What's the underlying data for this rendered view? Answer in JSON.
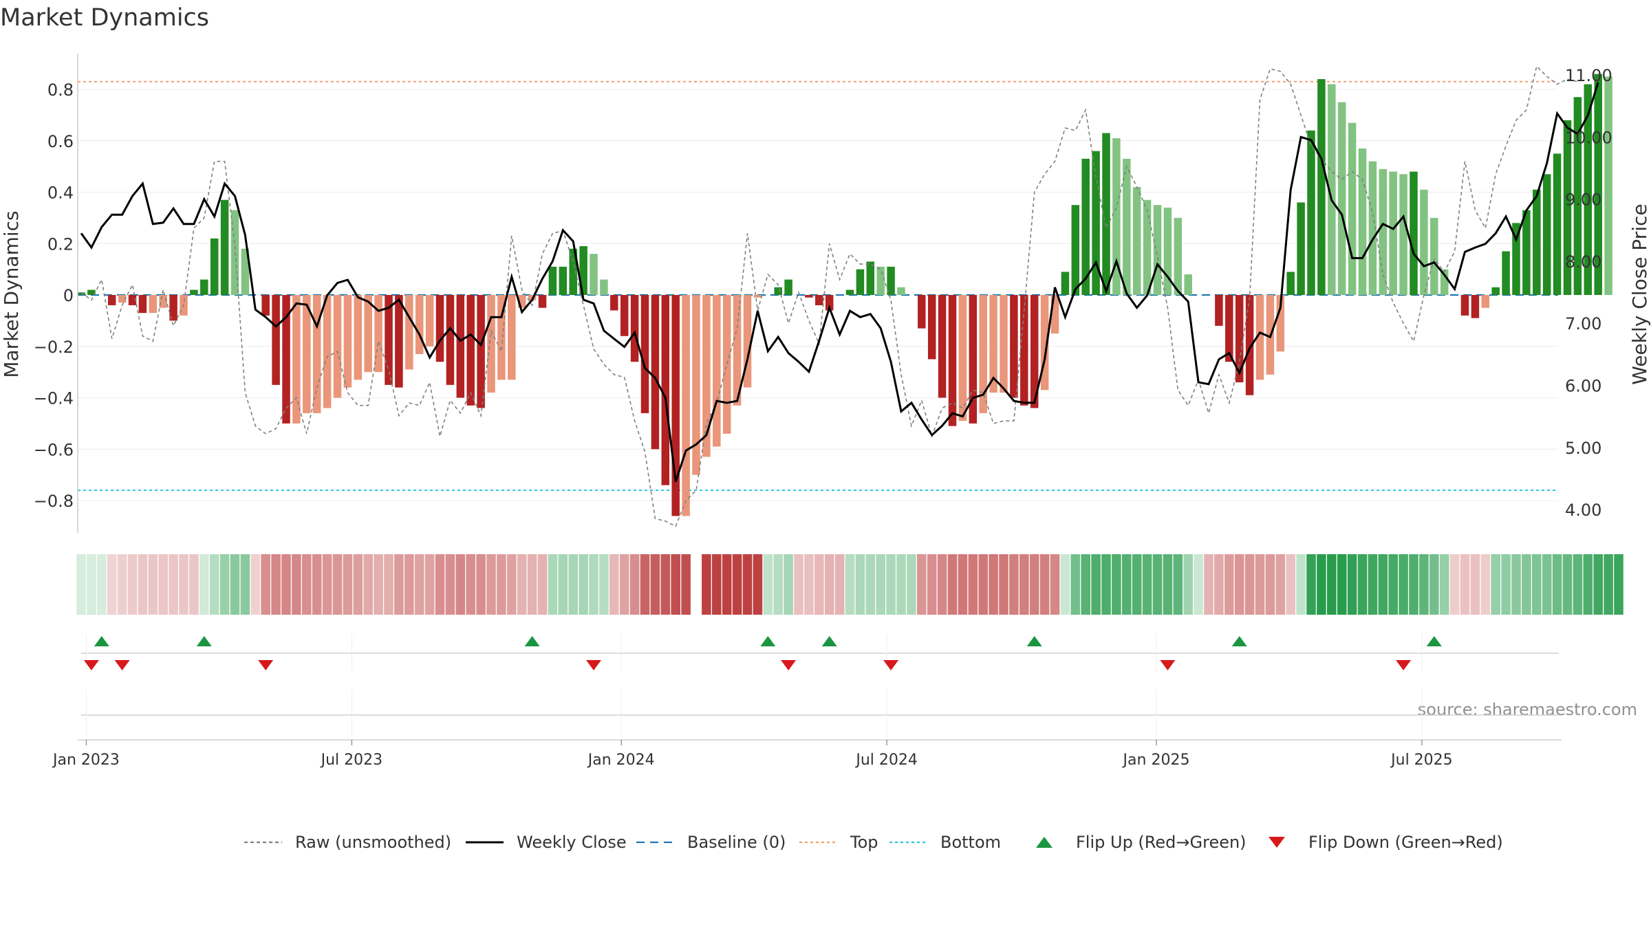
{
  "title": "Market Dynamics",
  "source_text": "source: sharemaestro.com",
  "colors": {
    "green_dark": "#228b22",
    "green_light": "#82c382",
    "red_dark": "#b22222",
    "red_light": "#e9967a",
    "top_line": "#f4a06a",
    "bottom_line": "#2ec4d8",
    "baseline": "#1f77b4",
    "raw_line": "#808080",
    "close_line": "#000000",
    "flip_up": "#1a9641",
    "flip_down": "#d7191c"
  },
  "chart_data": {
    "type": "bar",
    "title": "Market Dynamics",
    "ylabel": "Market Dynamics",
    "y2label": "Weekly Close Price",
    "ylim": [
      -0.92,
      0.93
    ],
    "y2lim": [
      3.7,
      11.5
    ],
    "yticks": [
      "0.8",
      "0.6",
      "0.4",
      "0.2",
      "0",
      "−0.2",
      "−0.4",
      "−0.6",
      "−0.8"
    ],
    "ytick_values": [
      0.8,
      0.6,
      0.4,
      0.2,
      0,
      -0.2,
      -0.4,
      -0.6,
      -0.8
    ],
    "y2ticks": [
      "11.00",
      "10.00",
      "9.00",
      "8.00",
      "7.00",
      "6.00",
      "5.00",
      "4.00"
    ],
    "y2tick_values": [
      11,
      10,
      9,
      8,
      7,
      6,
      5,
      4
    ],
    "xticks": [
      "Jan 2023",
      "Jul 2023",
      "Jan 2024",
      "Jul 2024",
      "Jan 2025",
      "Jul 2025"
    ],
    "xtick_weeks": [
      0.5,
      26.4,
      52.7,
      78.6,
      104.9,
      130.8
    ],
    "top_level": 0.83,
    "bottom_level": -0.76,
    "grid": true,
    "legend_position": "bottom-center",
    "bars": [
      0.01,
      0.02,
      0,
      -0.04,
      -0.03,
      -0.04,
      -0.07,
      -0.07,
      -0.05,
      -0.1,
      -0.08,
      0.02,
      0.06,
      0.22,
      0.37,
      0.33,
      0.18,
      0,
      -0.08,
      -0.35,
      -0.5,
      -0.5,
      -0.46,
      -0.46,
      -0.44,
      -0.4,
      -0.36,
      -0.33,
      -0.3,
      -0.3,
      -0.35,
      -0.36,
      -0.29,
      -0.23,
      -0.2,
      -0.26,
      -0.35,
      -0.4,
      -0.43,
      -0.44,
      -0.38,
      -0.33,
      -0.33,
      -0.05,
      -0.02,
      -0.05,
      0.11,
      0.11,
      0.18,
      0.19,
      0.16,
      0.06,
      -0.06,
      -0.16,
      -0.26,
      -0.46,
      -0.6,
      -0.74,
      -0.86,
      -0.86,
      -0.7,
      -0.63,
      -0.59,
      -0.54,
      -0.43,
      -0.36,
      -0.01,
      0,
      0.03,
      0.06,
      0,
      -0.01,
      -0.04,
      -0.06,
      0,
      0.02,
      0.1,
      0.13,
      0.11,
      0.11,
      0.03,
      0,
      -0.13,
      -0.25,
      -0.4,
      -0.51,
      -0.49,
      -0.5,
      -0.46,
      -0.38,
      -0.38,
      -0.4,
      -0.43,
      -0.44,
      -0.37,
      -0.15,
      0.09,
      0.35,
      0.53,
      0.56,
      0.63,
      0.61,
      0.53,
      0.42,
      0.37,
      0.35,
      0.34,
      0.3,
      0.08,
      0,
      0,
      -0.12,
      -0.26,
      -0.34,
      -0.39,
      -0.33,
      -0.31,
      -0.22,
      0.09,
      0.36,
      0.64,
      0.84,
      0.82,
      0.75,
      0.67,
      0.57,
      0.52,
      0.49,
      0.48,
      0.47,
      0.48,
      0.41,
      0.3,
      0.1,
      0,
      -0.08,
      -0.09,
      -0.05,
      0.03,
      0.17,
      0.28,
      0.33,
      0.41,
      0.47,
      0.55,
      0.68,
      0.77,
      0.82,
      0.86,
      0.85
    ],
    "series": [
      {
        "name": "Raw (unsmoothed)",
        "values": [
          0.01,
          -0.02,
          0.06,
          -0.17,
          -0.04,
          0.04,
          -0.16,
          -0.18,
          0.02,
          -0.12,
          -0.04,
          0.26,
          0.3,
          0.52,
          0.52,
          0.19,
          -0.38,
          -0.51,
          -0.54,
          -0.52,
          -0.44,
          -0.4,
          -0.54,
          -0.36,
          -0.24,
          -0.22,
          -0.38,
          -0.43,
          -0.43,
          -0.18,
          -0.29,
          -0.47,
          -0.42,
          -0.43,
          -0.34,
          -0.55,
          -0.41,
          -0.46,
          -0.38,
          -0.47,
          -0.14,
          -0.22,
          0.23,
          0.02,
          -0.04,
          0.16,
          0.24,
          0.25,
          0.13,
          -0.04,
          -0.21,
          -0.27,
          -0.31,
          -0.32,
          -0.49,
          -0.61,
          -0.87,
          -0.88,
          -0.9,
          -0.8,
          -0.76,
          -0.5,
          -0.42,
          -0.27,
          -0.13,
          0.24,
          -0.06,
          0.08,
          0.04,
          -0.11,
          0.01,
          -0.1,
          -0.19,
          0.2,
          0.06,
          0.16,
          0.12,
          0.12,
          0.1,
          -0.02,
          -0.31,
          -0.51,
          -0.41,
          -0.55,
          -0.44,
          -0.42,
          -0.44,
          -0.37,
          -0.38,
          -0.5,
          -0.49,
          -0.49,
          -0.06,
          0.4,
          0.47,
          0.52,
          0.65,
          0.64,
          0.72,
          0.46,
          0.26,
          0.34,
          0.5,
          0.42,
          0.33,
          0.15,
          -0.05,
          -0.37,
          -0.43,
          -0.33,
          -0.46,
          -0.31,
          -0.42,
          -0.26,
          -0.01,
          0.76,
          0.88,
          0.87,
          0.82,
          0.7,
          0.58,
          0.53,
          0.48,
          0.45,
          0.48,
          0.45,
          0.32,
          0.08,
          -0.03,
          -0.11,
          -0.18,
          0.0,
          0.14,
          0.09,
          0.17,
          0.52,
          0.33,
          0.26,
          0.47,
          0.58,
          0.68,
          0.72,
          0.89,
          0.85,
          0.82,
          0.84,
          0.83
        ]
      },
      {
        "name": "Weekly Close",
        "values": [
          8.45,
          8.22,
          8.55,
          8.75,
          8.75,
          9.05,
          9.25,
          8.6,
          8.62,
          8.85,
          8.6,
          8.6,
          9.0,
          8.72,
          9.25,
          9.05,
          8.42,
          7.22,
          7.1,
          6.95,
          7.1,
          7.32,
          7.3,
          6.95,
          7.45,
          7.65,
          7.7,
          7.42,
          7.35,
          7.2,
          7.25,
          7.38,
          7.1,
          6.82,
          6.45,
          6.72,
          6.92,
          6.72,
          6.82,
          6.65,
          7.1,
          7.1,
          7.75,
          7.18,
          7.38,
          7.72,
          8.0,
          8.5,
          8.32,
          7.38,
          7.32,
          6.88,
          6.75,
          6.62,
          6.85,
          6.28,
          6.12,
          5.8,
          4.45,
          4.95,
          5.05,
          5.2,
          5.75,
          5.72,
          5.75,
          6.42,
          7.2,
          6.55,
          6.78,
          6.52,
          6.38,
          6.22,
          6.72,
          7.25,
          6.82,
          7.2,
          7.1,
          7.15,
          6.92,
          6.38,
          5.58,
          5.72,
          5.45,
          5.2,
          5.35,
          5.55,
          5.5,
          5.8,
          5.85,
          6.12,
          5.95,
          5.75,
          5.72,
          5.72,
          6.42,
          7.58,
          7.1,
          7.55,
          7.72,
          7.98,
          7.52,
          8.0,
          7.48,
          7.25,
          7.45,
          7.95,
          7.75,
          7.52,
          7.35,
          6.05,
          6.02,
          6.42,
          6.52,
          6.2,
          6.6,
          6.85,
          6.78,
          7.25,
          9.15,
          10.0,
          9.95,
          9.65,
          8.98,
          8.75,
          8.05,
          8.05,
          8.35,
          8.6,
          8.52,
          8.72,
          8.12,
          7.92,
          7.98,
          7.78,
          7.55,
          8.15,
          8.22,
          8.28,
          8.45,
          8.72,
          8.35,
          8.82,
          9.05,
          9.58,
          10.38,
          10.15,
          10.05,
          10.35,
          10.88
        ]
      }
    ],
    "strip": [
      0,
      0,
      0,
      -0.02,
      -0.04,
      -0.06,
      -0.08,
      -0.08,
      -0.08,
      -0.08,
      -0.08,
      -0.08,
      0.02,
      0.15,
      0.28,
      0.35,
      0.35,
      -0.03,
      -0.35,
      -0.38,
      -0.38,
      -0.38,
      -0.35,
      -0.35,
      -0.32,
      -0.32,
      -0.3,
      -0.27,
      -0.22,
      -0.2,
      -0.2,
      -0.3,
      -0.3,
      -0.25,
      -0.25,
      -0.35,
      -0.35,
      -0.38,
      -0.35,
      -0.35,
      -0.3,
      -0.3,
      -0.25,
      -0.18,
      -0.18,
      -0.18,
      0.2,
      0.22,
      0.22,
      0.22,
      0.18,
      0.15,
      -0.15,
      -0.25,
      -0.35,
      -0.55,
      -0.58,
      -0.6,
      -0.65,
      -0.65,
      null,
      -0.72,
      -0.72,
      -0.72,
      -0.72,
      -0.72,
      -0.72,
      0.1,
      0.15,
      0.22,
      -0.12,
      -0.12,
      -0.15,
      -0.18,
      -0.18,
      0.15,
      0.2,
      0.2,
      0.2,
      0.2,
      0.2,
      0.2,
      -0.32,
      -0.35,
      -0.38,
      -0.45,
      -0.45,
      -0.45,
      -0.45,
      -0.45,
      -0.45,
      -0.42,
      -0.42,
      -0.42,
      -0.42,
      -0.38,
      0.05,
      0.45,
      0.58,
      0.62,
      0.62,
      0.62,
      0.6,
      0.6,
      0.58,
      0.58,
      0.58,
      0.55,
      0.25,
      0.05,
      -0.18,
      -0.22,
      -0.28,
      -0.32,
      -0.32,
      -0.3,
      -0.3,
      -0.25,
      -0.1,
      0.1,
      0.75,
      0.8,
      0.8,
      0.8,
      0.76,
      0.72,
      0.7,
      0.68,
      0.66,
      0.64,
      0.62,
      0.55,
      0.45,
      0.3,
      -0.05,
      -0.1,
      -0.1,
      -0.05,
      0.3,
      0.32,
      0.35,
      0.38,
      0.4,
      0.42,
      0.48,
      0.52,
      0.55,
      0.62,
      0.68,
      0.68,
      0.72
    ],
    "flip_up_weeks": [
      2,
      12,
      44,
      67,
      73,
      93,
      113,
      132
    ],
    "flip_down_weeks": [
      1,
      4,
      18,
      50,
      69,
      79,
      106,
      129
    ],
    "legend": [
      {
        "label": "Raw (unsmoothed)",
        "style": "dashed",
        "color": "#808080"
      },
      {
        "label": "Weekly Close",
        "style": "solid",
        "color": "#000000"
      },
      {
        "label": "Baseline (0)",
        "style": "longdash",
        "color": "#1f77b4"
      },
      {
        "label": "Top",
        "style": "dotted",
        "color": "#f4a06a"
      },
      {
        "label": "Bottom",
        "style": "dotted",
        "color": "#2ec4d8"
      },
      {
        "label": "Flip Up (Red→Green)",
        "style": "marker-up",
        "color": "#1a9641"
      },
      {
        "label": "Flip Down (Green→Red)",
        "style": "marker-down",
        "color": "#d7191c"
      }
    ]
  }
}
